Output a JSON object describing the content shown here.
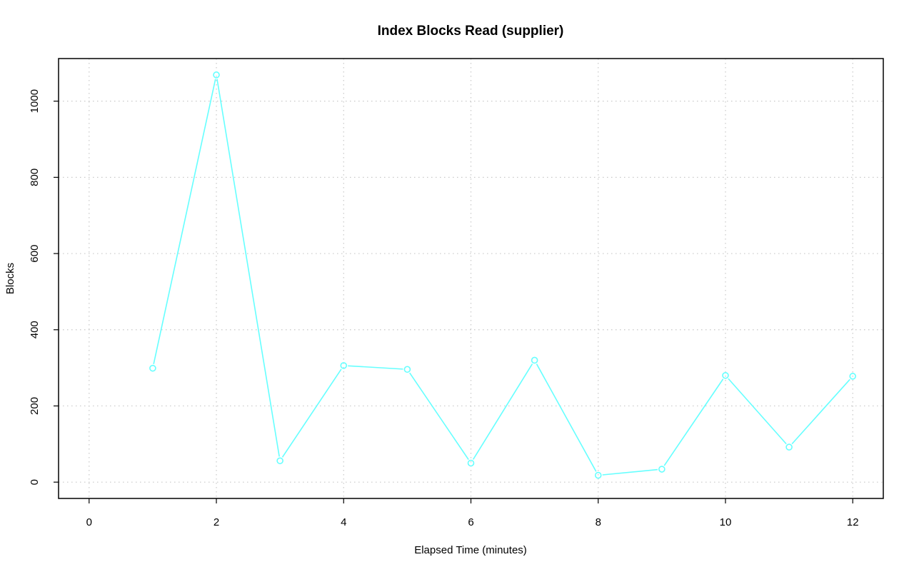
{
  "chart_data": {
    "type": "line",
    "title": "Index Blocks Read (supplier)",
    "xlabel": "Elapsed Time (minutes)",
    "ylabel": "Blocks",
    "x": [
      1,
      2,
      3,
      4,
      5,
      6,
      7,
      8,
      9,
      10,
      11,
      12
    ],
    "series": [
      {
        "values": [
          299,
          1069,
          56,
          306,
          296,
          50,
          320,
          18,
          34,
          280,
          92,
          278
        ],
        "color": "#66ffff"
      }
    ],
    "xlim": [
      -0.48,
      12.48
    ],
    "ylim": [
      -42.8,
      1111.8
    ],
    "xticks": [
      0,
      2,
      4,
      6,
      8,
      10,
      12
    ],
    "yticks": [
      0,
      200,
      400,
      600,
      800,
      1000
    ],
    "grid": true,
    "marker": "open-circle"
  }
}
